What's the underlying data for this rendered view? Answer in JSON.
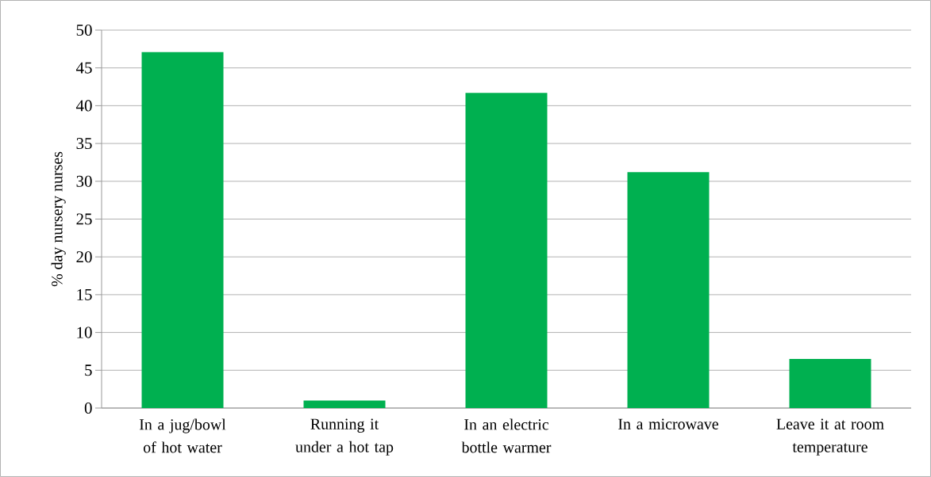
{
  "chart_data": {
    "type": "bar",
    "ylabel": "% day nursery nurses",
    "categories": [
      "In a jug/bowl of hot water",
      "Running it under a hot tap",
      "In an electric bottle warmer",
      "In a microwave",
      "Leave it at room temperature"
    ],
    "values": [
      47.1,
      1.0,
      41.7,
      31.2,
      6.5
    ],
    "color": "#00b050",
    "ylim": [
      0,
      50
    ],
    "yticks": [
      0,
      5,
      10,
      15,
      20,
      25,
      30,
      35,
      40,
      45,
      50
    ],
    "grid": "y"
  }
}
